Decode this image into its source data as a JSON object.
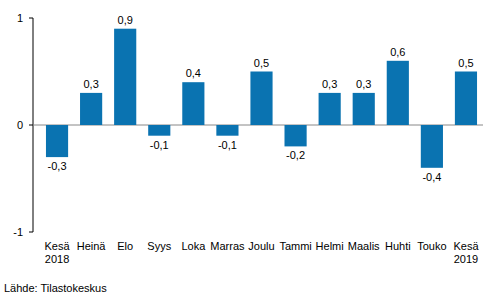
{
  "chart_data": {
    "type": "bar",
    "categories": [
      "Kesä\n2018",
      "Heinä",
      "Elo",
      "Syys",
      "Loka",
      "Marras",
      "Joulu",
      "Tammi",
      "Helmi",
      "Maalis",
      "Huhti",
      "Touko",
      "Kesä\n2019"
    ],
    "values": [
      -0.3,
      0.3,
      0.9,
      -0.1,
      0.4,
      -0.1,
      0.5,
      -0.2,
      0.3,
      0.3,
      0.6,
      -0.4,
      0.5
    ],
    "value_labels": [
      "-0,3",
      "0,3",
      "0,9",
      "-0,1",
      "0,4",
      "-0,1",
      "0,5",
      "-0,2",
      "0,3",
      "0,3",
      "0,6",
      "-0,4",
      "0,5"
    ],
    "data_labels": true,
    "color": "#0a73b1",
    "ylim": [
      -1,
      1
    ],
    "yticks": [
      -1,
      0,
      1
    ],
    "grid": false,
    "source": "Lähde: Tilastokeskus"
  }
}
